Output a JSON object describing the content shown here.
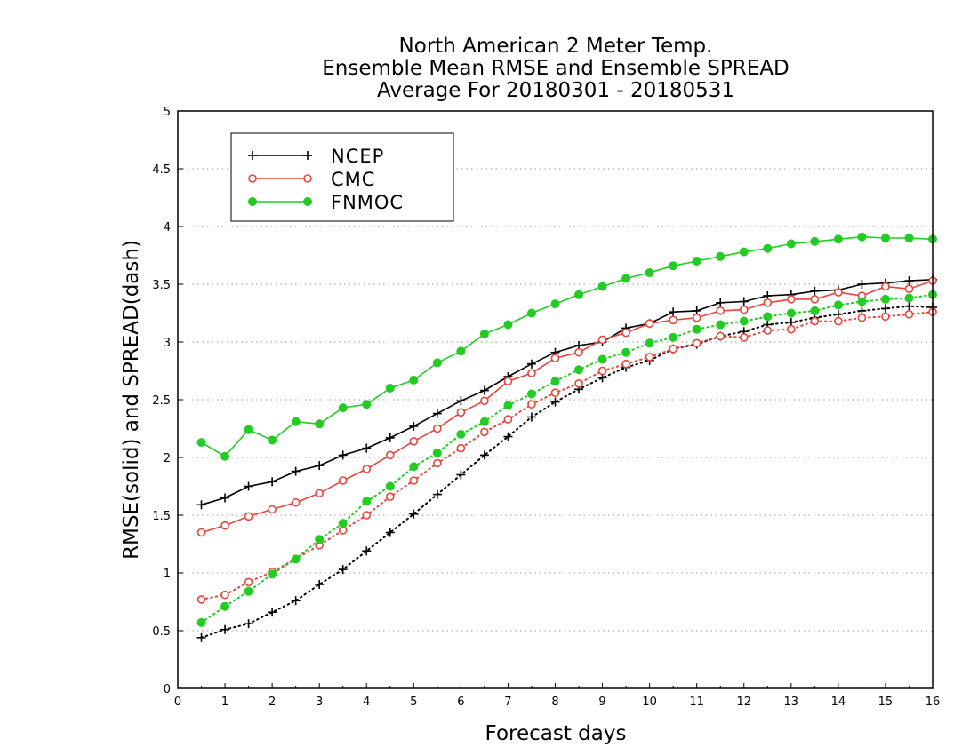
{
  "chart_data": {
    "type": "line",
    "title_lines": [
      "North American 2 Meter Temp.",
      "Ensemble Mean RMSE and Ensemble SPREAD",
      "Average For 20180301 - 20180531"
    ],
    "xlabel": "Forecast days",
    "ylabel": "RMSE(solid) and SPREAD(dash)",
    "xlim": [
      0,
      16
    ],
    "ylim": [
      0,
      5
    ],
    "xticks": [
      "0",
      "1",
      "2",
      "3",
      "4",
      "5",
      "6",
      "7",
      "8",
      "9",
      "10",
      "11",
      "12",
      "13",
      "14",
      "15",
      "16"
    ],
    "yticks": [
      "0",
      "0.5",
      "1",
      "1.5",
      "2",
      "2.5",
      "3",
      "3.5",
      "4",
      "4.5",
      "5"
    ],
    "grid": "horizontal-dotted",
    "legend_position": "top-left",
    "x": [
      0.5,
      1,
      1.5,
      2,
      2.5,
      3,
      3.5,
      4,
      4.5,
      5,
      5.5,
      6,
      6.5,
      7,
      7.5,
      8,
      8.5,
      9,
      9.5,
      10,
      10.5,
      11,
      11.5,
      12,
      12.5,
      13,
      13.5,
      14,
      14.5,
      15,
      15.5,
      16
    ],
    "series": [
      {
        "name": "NCEP",
        "color": "#000000",
        "marker": "plus",
        "rmse": [
          1.59,
          1.65,
          1.75,
          1.79,
          1.88,
          1.93,
          2.02,
          2.08,
          2.17,
          2.27,
          2.38,
          2.49,
          2.58,
          2.7,
          2.81,
          2.91,
          2.97,
          3.0,
          3.12,
          3.16,
          3.26,
          3.27,
          3.34,
          3.35,
          3.4,
          3.41,
          3.44,
          3.45,
          3.5,
          3.51,
          3.53,
          3.54
        ],
        "spread": [
          0.44,
          0.51,
          0.56,
          0.66,
          0.76,
          0.9,
          1.03,
          1.19,
          1.35,
          1.51,
          1.68,
          1.85,
          2.02,
          2.18,
          2.35,
          2.48,
          2.59,
          2.69,
          2.78,
          2.84,
          2.94,
          2.98,
          3.05,
          3.09,
          3.15,
          3.17,
          3.21,
          3.24,
          3.27,
          3.29,
          3.31,
          3.3
        ]
      },
      {
        "name": "CMC",
        "color": "#e8453c",
        "marker": "open-circle",
        "rmse": [
          1.35,
          1.41,
          1.49,
          1.55,
          1.61,
          1.69,
          1.8,
          1.9,
          2.02,
          2.14,
          2.25,
          2.39,
          2.49,
          2.66,
          2.73,
          2.86,
          2.91,
          3.02,
          3.08,
          3.16,
          3.19,
          3.21,
          3.27,
          3.28,
          3.34,
          3.37,
          3.37,
          3.43,
          3.4,
          3.48,
          3.46,
          3.53
        ],
        "spread": [
          0.77,
          0.81,
          0.92,
          1.01,
          1.12,
          1.24,
          1.37,
          1.5,
          1.66,
          1.8,
          1.95,
          2.08,
          2.22,
          2.33,
          2.46,
          2.56,
          2.64,
          2.75,
          2.81,
          2.87,
          2.94,
          2.99,
          3.05,
          3.04,
          3.1,
          3.11,
          3.18,
          3.18,
          3.21,
          3.22,
          3.24,
          3.26
        ]
      },
      {
        "name": "FNMOC",
        "color": "#22cc22",
        "marker": "filled-circle",
        "rmse": [
          2.13,
          2.01,
          2.24,
          2.15,
          2.31,
          2.29,
          2.43,
          2.46,
          2.6,
          2.67,
          2.82,
          2.92,
          3.07,
          3.15,
          3.25,
          3.33,
          3.41,
          3.48,
          3.55,
          3.6,
          3.66,
          3.7,
          3.74,
          3.78,
          3.81,
          3.85,
          3.87,
          3.89,
          3.91,
          3.9,
          3.9,
          3.89
        ],
        "spread": [
          0.57,
          0.71,
          0.84,
          0.99,
          1.12,
          1.29,
          1.43,
          1.62,
          1.75,
          1.92,
          2.04,
          2.2,
          2.31,
          2.45,
          2.55,
          2.66,
          2.76,
          2.85,
          2.91,
          2.99,
          3.04,
          3.11,
          3.15,
          3.18,
          3.22,
          3.25,
          3.27,
          3.32,
          3.35,
          3.37,
          3.38,
          3.41
        ]
      }
    ]
  }
}
